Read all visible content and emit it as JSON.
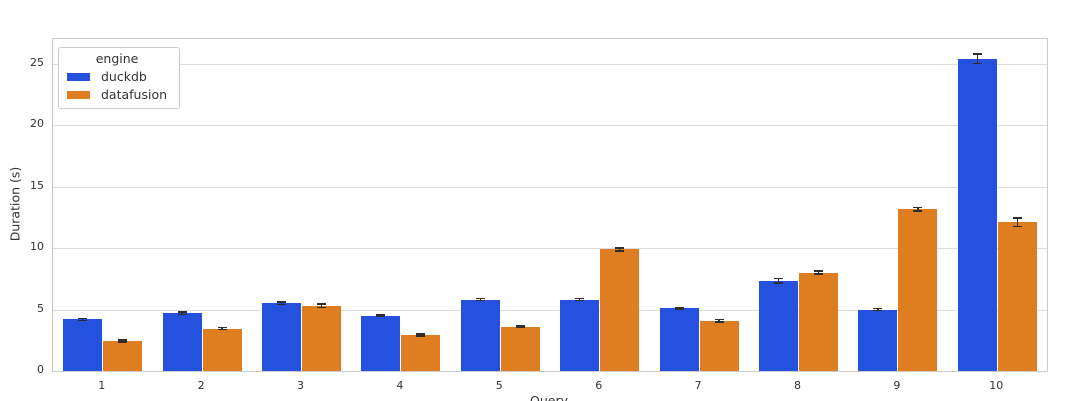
{
  "chart_data": {
    "type": "bar",
    "title": "",
    "xlabel": "Query",
    "ylabel": "Duration (s)",
    "categories": [
      "1",
      "2",
      "3",
      "4",
      "5",
      "6",
      "7",
      "8",
      "9",
      "10"
    ],
    "series": [
      {
        "name": "duckdb",
        "color": "#2451de",
        "values": [
          4.2,
          4.7,
          5.5,
          4.5,
          5.8,
          5.8,
          5.1,
          7.35,
          5.0,
          25.4
        ],
        "errors": [
          0.08,
          0.1,
          0.1,
          0.07,
          0.08,
          0.08,
          0.07,
          0.18,
          0.08,
          0.4
        ]
      },
      {
        "name": "datafusion",
        "color": "#df7e20",
        "values": [
          2.45,
          3.45,
          5.3,
          2.95,
          3.6,
          9.9,
          4.1,
          8.0,
          13.15,
          12.1
        ],
        "errors": [
          0.07,
          0.08,
          0.15,
          0.08,
          0.07,
          0.12,
          0.1,
          0.12,
          0.16,
          0.35
        ]
      }
    ],
    "ylim": [
      0,
      27
    ],
    "yticks": [
      0,
      5,
      10,
      15,
      20,
      25
    ],
    "grid": true,
    "legend": {
      "title": "engine",
      "position": "upper-left"
    },
    "colors": {
      "grid": "#dcdcdc",
      "spine": "#cccccc",
      "text": "#333333",
      "errorbar": "#2e2e2e",
      "background": "#ffffff"
    }
  }
}
